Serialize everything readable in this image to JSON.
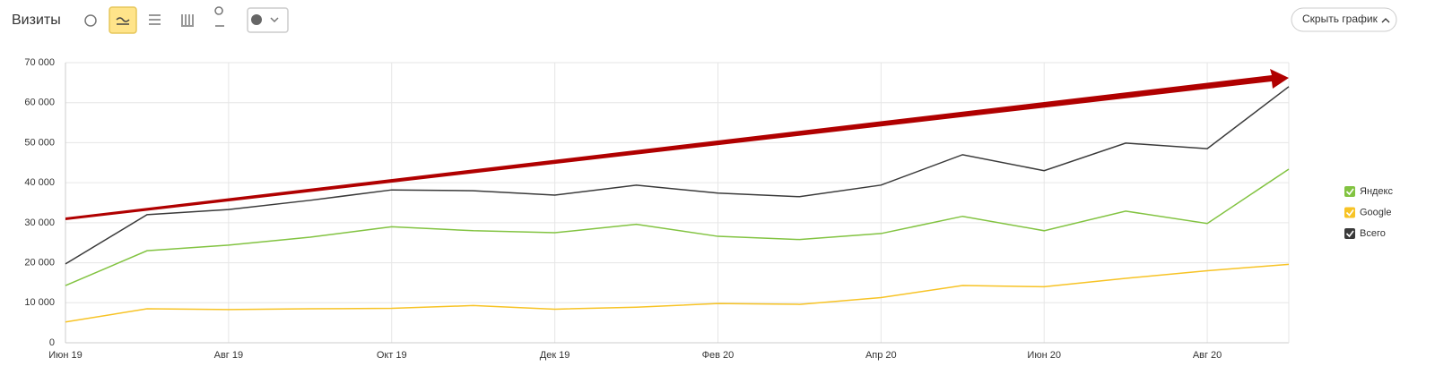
{
  "ui": {
    "title": "Визиты",
    "hide_button": "Скрыть график"
  },
  "chart_data": {
    "type": "line",
    "categories": [
      "Июн 19",
      null,
      "Авг 19",
      null,
      "Окт 19",
      null,
      "Дек 19",
      null,
      "Фев 20",
      null,
      "Апр 20",
      null,
      "Июн 20",
      null,
      "Авг 20",
      null
    ],
    "series": [
      {
        "name": "Яндекс",
        "color": "#82c341",
        "values": [
          14300,
          23000,
          24400,
          26400,
          29000,
          28000,
          27500,
          29600,
          26600,
          25800,
          27300,
          31600,
          28000,
          32900,
          29800,
          43400
        ]
      },
      {
        "name": "Google",
        "color": "#f7c325",
        "values": [
          5200,
          8500,
          8300,
          8500,
          8600,
          9300,
          8400,
          8900,
          9800,
          9600,
          11300,
          14300,
          14000,
          16100,
          18000,
          19600
        ]
      },
      {
        "name": "Всего",
        "color": "#3a3a3a",
        "values": [
          19700,
          32000,
          33300,
          35600,
          38200,
          38000,
          36900,
          39400,
          37400,
          36500,
          39400,
          47000,
          43000,
          49900,
          48500,
          64000
        ]
      }
    ],
    "ylim": [
      0,
      70000
    ],
    "yticks": [
      0,
      {
        "value": 10000,
        "label": "10 000"
      },
      {
        "value": 20000,
        "label": "20 000"
      },
      {
        "value": 30000,
        "label": "30 000"
      },
      {
        "value": 40000,
        "label": "40 000"
      },
      {
        "value": 50000,
        "label": "50 000"
      },
      {
        "value": 60000,
        "label": "60 000"
      },
      {
        "value": 70000,
        "label": "70 000"
      }
    ],
    "grid": true,
    "legend": "right"
  }
}
